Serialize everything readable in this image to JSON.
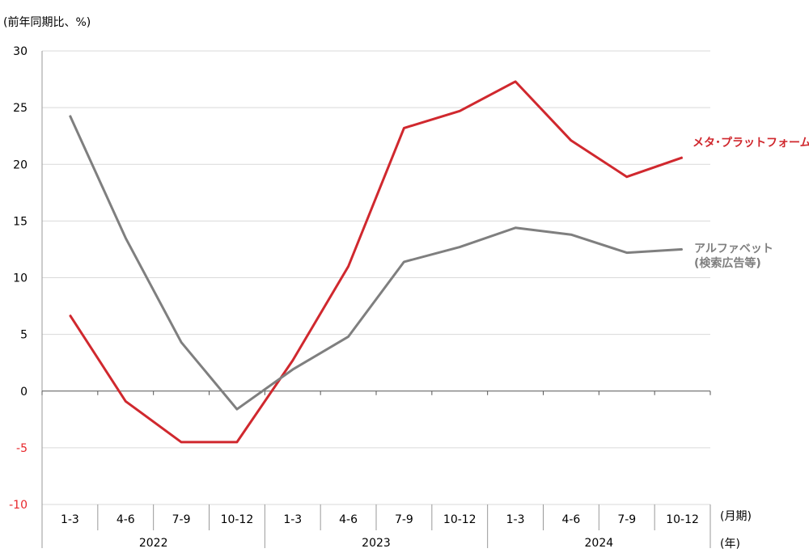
{
  "chart_data": {
    "type": "line",
    "y_unit_label": "(前年同期比、%)",
    "x_unit_label_quarter": "(月期)",
    "x_unit_label_year": "(年)",
    "ylim": [
      -10,
      30
    ],
    "y_ticks": [
      30,
      25,
      20,
      15,
      10,
      5,
      0,
      -5,
      -10
    ],
    "grid": true,
    "categories": [
      "1-3",
      "4-6",
      "7-9",
      "10-12",
      "1-3",
      "4-6",
      "7-9",
      "10-12",
      "1-3",
      "4-6",
      "7-9",
      "10-12"
    ],
    "years": [
      "2022",
      "2023",
      "2024"
    ],
    "series": [
      {
        "name": "メタ･プラットフォームズ",
        "color": "#d0282e",
        "values": [
          6.7,
          -0.9,
          -4.5,
          -4.5,
          2.7,
          11.0,
          23.2,
          24.7,
          27.3,
          22.1,
          18.9,
          20.6
        ]
      },
      {
        "name": "アルファベット\n(検索広告等)",
        "color": "#7f7f7f",
        "values": [
          24.3,
          13.5,
          4.3,
          -1.6,
          1.9,
          4.8,
          11.4,
          12.7,
          14.4,
          13.8,
          12.2,
          12.5
        ]
      }
    ]
  }
}
